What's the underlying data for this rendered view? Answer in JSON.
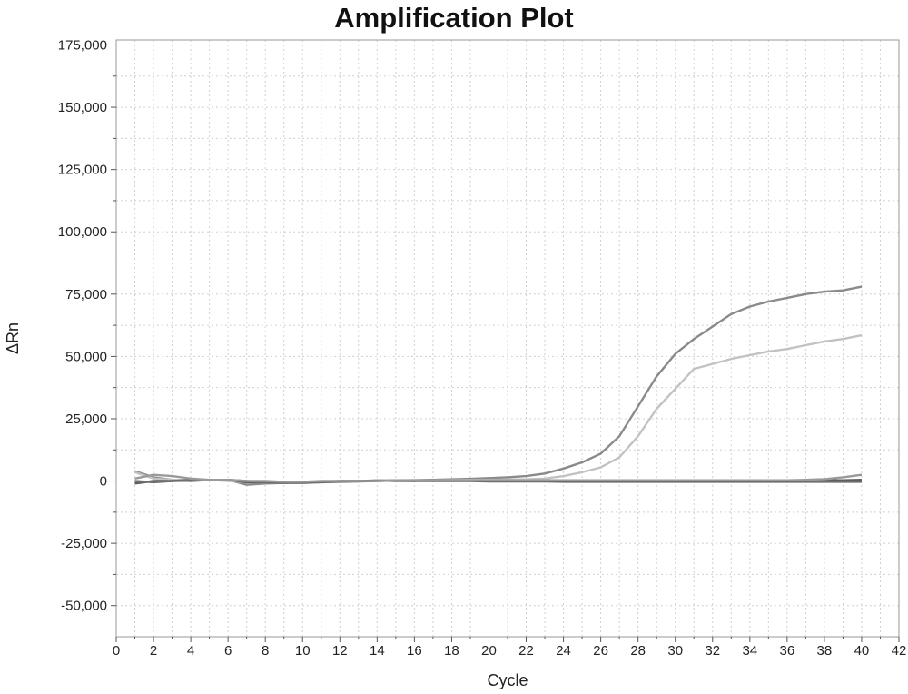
{
  "chart_data": {
    "type": "line",
    "title": "Amplification Plot",
    "xlabel": "Cycle",
    "ylabel": "ΔRn",
    "xlim": [
      0,
      42
    ],
    "ylim": [
      -62500,
      177000
    ],
    "x_ticks": [
      0,
      2,
      4,
      6,
      8,
      10,
      12,
      14,
      16,
      18,
      20,
      22,
      24,
      26,
      28,
      30,
      32,
      34,
      36,
      38,
      40,
      42
    ],
    "y_ticks": [
      -50000,
      -25000,
      0,
      25000,
      50000,
      75000,
      100000,
      125000,
      150000,
      175000
    ],
    "y_tick_labels": [
      "-50,000",
      "-25,000",
      "0",
      "25,000",
      "50,000",
      "75,000",
      "100,000",
      "125,000",
      "150,000",
      "175,000"
    ],
    "grid": true,
    "x": [
      1,
      2,
      3,
      4,
      5,
      6,
      7,
      8,
      9,
      10,
      11,
      12,
      13,
      14,
      15,
      16,
      17,
      18,
      19,
      20,
      21,
      22,
      23,
      24,
      25,
      26,
      27,
      28,
      29,
      30,
      31,
      32,
      33,
      34,
      35,
      36,
      37,
      38,
      39,
      40
    ],
    "series": [
      {
        "color": "#8a8a8a",
        "values": [
          4000,
          1500,
          500,
          0,
          500,
          500,
          -1500,
          -1000,
          -800,
          -500,
          -300,
          0,
          0,
          200,
          300,
          400,
          500,
          700,
          900,
          1200,
          1500,
          2000,
          3000,
          5000,
          7500,
          11000,
          18000,
          30000,
          42000,
          51000,
          57000,
          62000,
          67000,
          70000,
          72000,
          73500,
          75000,
          76000,
          76500,
          78000
        ]
      },
      {
        "color": "#c2c2c2",
        "values": [
          3500,
          1000,
          500,
          500,
          500,
          0,
          -500,
          -500,
          -500,
          -300,
          -200,
          0,
          0,
          0,
          200,
          300,
          300,
          400,
          500,
          500,
          600,
          700,
          1000,
          2000,
          3500,
          5500,
          9500,
          18000,
          29000,
          37000,
          45000,
          47000,
          49000,
          50500,
          52000,
          53000,
          54500,
          56000,
          57000,
          58500
        ]
      },
      {
        "color": "#5e5e5e",
        "values": [
          -1000,
          0,
          0,
          200,
          300,
          500,
          -500,
          -500,
          -500,
          -500,
          -300,
          0,
          0,
          200,
          0,
          0,
          300,
          200,
          300,
          300,
          300,
          200,
          200,
          0,
          0,
          0,
          0,
          0,
          0,
          0,
          0,
          0,
          0,
          200,
          300,
          300,
          300,
          300,
          300,
          500
        ]
      },
      {
        "color": "#6e6e6e",
        "values": [
          0,
          -500,
          0,
          500,
          500,
          500,
          0,
          -500,
          -800,
          -800,
          -500,
          -300,
          -200,
          0,
          200,
          0,
          0,
          0,
          0,
          -200,
          -200,
          -200,
          -200,
          -300,
          -300,
          -300,
          -300,
          -300,
          -300,
          -300,
          -300,
          -300,
          -300,
          -300,
          -300,
          -300,
          -300,
          -300,
          -300,
          -300
        ]
      },
      {
        "color": "#9a9a9a",
        "values": [
          1000,
          2500,
          2000,
          1000,
          500,
          500,
          0,
          0,
          -300,
          -300,
          0,
          0,
          0,
          0,
          200,
          200,
          300,
          300,
          300,
          300,
          300,
          300,
          300,
          300,
          300,
          300,
          300,
          300,
          300,
          300,
          300,
          300,
          300,
          300,
          300,
          300,
          500,
          800,
          1500,
          2500
        ]
      }
    ]
  }
}
